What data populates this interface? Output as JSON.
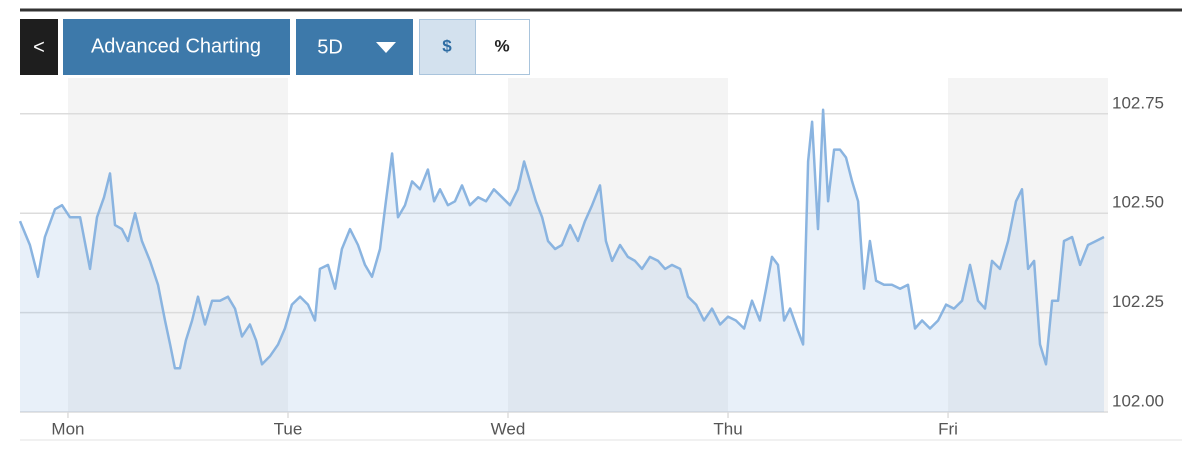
{
  "ui": {
    "back": "<",
    "advanced": "Advanced Charting",
    "range": "5D",
    "dollar": "$",
    "percent": "%"
  },
  "chart_data": {
    "type": "line",
    "x": [
      -0.218,
      -0.173,
      -0.136,
      -0.105,
      -0.059,
      -0.027,
      0.009,
      0.055,
      0.1,
      0.132,
      0.164,
      0.191,
      0.214,
      0.245,
      0.273,
      0.305,
      0.336,
      0.373,
      0.409,
      0.441,
      0.464,
      0.486,
      0.509,
      0.536,
      0.564,
      0.591,
      0.623,
      0.655,
      0.691,
      0.727,
      0.759,
      0.791,
      0.827,
      0.855,
      0.882,
      0.918,
      0.955,
      0.986,
      1.018,
      1.055,
      1.091,
      1.123,
      1.145,
      1.182,
      1.214,
      1.245,
      1.282,
      1.318,
      1.35,
      1.382,
      1.418,
      1.445,
      1.473,
      1.5,
      1.532,
      1.564,
      1.6,
      1.636,
      1.664,
      1.691,
      1.727,
      1.759,
      1.791,
      1.827,
      1.864,
      1.9,
      1.936,
      1.973,
      2.009,
      2.045,
      2.073,
      2.1,
      2.127,
      2.155,
      2.182,
      2.214,
      2.245,
      2.282,
      2.318,
      2.35,
      2.382,
      2.418,
      2.445,
      2.473,
      2.509,
      2.545,
      2.577,
      2.609,
      2.645,
      2.682,
      2.714,
      2.745,
      2.782,
      2.818,
      2.855,
      2.891,
      2.927,
      2.964,
      3.0,
      3.036,
      3.073,
      3.109,
      3.145,
      3.173,
      3.2,
      3.227,
      3.255,
      3.282,
      3.314,
      3.341,
      3.364,
      3.382,
      3.409,
      3.432,
      3.455,
      3.482,
      3.509,
      3.536,
      3.564,
      3.591,
      3.618,
      3.645,
      3.673,
      3.709,
      3.745,
      3.782,
      3.818,
      3.85,
      3.882,
      3.918,
      3.955,
      3.991,
      4.027,
      4.064,
      4.1,
      4.136,
      4.168,
      4.2,
      4.236,
      4.273,
      4.309,
      4.336,
      4.364,
      4.391,
      4.418,
      4.445,
      4.473,
      4.5,
      4.527,
      4.564,
      4.6,
      4.636,
      4.673,
      4.709
    ],
    "series": [
      {
        "color": "#8ab4e0",
        "values": [
          102.48,
          102.42,
          102.34,
          102.44,
          102.51,
          102.52,
          102.49,
          102.49,
          102.36,
          102.49,
          102.54,
          102.6,
          102.47,
          102.46,
          102.43,
          102.5,
          102.43,
          102.38,
          102.32,
          102.23,
          102.17,
          102.11,
          102.11,
          102.18,
          102.23,
          102.29,
          102.22,
          102.28,
          102.28,
          102.29,
          102.26,
          102.19,
          102.22,
          102.18,
          102.12,
          102.14,
          102.17,
          102.21,
          102.27,
          102.29,
          102.27,
          102.23,
          102.36,
          102.37,
          102.31,
          102.41,
          102.46,
          102.42,
          102.37,
          102.34,
          102.41,
          102.53,
          102.65,
          102.49,
          102.52,
          102.58,
          102.56,
          102.61,
          102.53,
          102.56,
          102.52,
          102.53,
          102.57,
          102.52,
          102.54,
          102.53,
          102.56,
          102.54,
          102.52,
          102.56,
          102.63,
          102.58,
          102.53,
          102.49,
          102.43,
          102.41,
          102.42,
          102.47,
          102.43,
          102.48,
          102.52,
          102.57,
          102.43,
          102.38,
          102.42,
          102.39,
          102.38,
          102.36,
          102.39,
          102.38,
          102.36,
          102.37,
          102.36,
          102.29,
          102.27,
          102.23,
          102.26,
          102.22,
          102.24,
          102.23,
          102.21,
          102.28,
          102.23,
          102.31,
          102.39,
          102.37,
          102.23,
          102.26,
          102.21,
          102.17,
          102.63,
          102.73,
          102.46,
          102.76,
          102.53,
          102.66,
          102.66,
          102.64,
          102.58,
          102.53,
          102.31,
          102.43,
          102.33,
          102.32,
          102.32,
          102.31,
          102.32,
          102.21,
          102.23,
          102.21,
          102.23,
          102.27,
          102.26,
          102.28,
          102.37,
          102.28,
          102.26,
          102.38,
          102.36,
          102.43,
          102.53,
          102.56,
          102.36,
          102.38,
          102.17,
          102.12,
          102.28,
          102.28,
          102.43,
          102.44,
          102.37,
          102.42,
          102.43,
          102.44
        ]
      }
    ],
    "xlim": [
      -0.218,
      4.727
    ],
    "xticks": [
      {
        "value": 0,
        "label": "Mon"
      },
      {
        "value": 1,
        "label": "Tue"
      },
      {
        "value": 2,
        "label": "Wed"
      },
      {
        "value": 3,
        "label": "Thu"
      },
      {
        "value": 4,
        "label": "Fri"
      }
    ],
    "ylim": [
      102,
      102.84
    ],
    "yticks": [
      {
        "value": 102,
        "label": "102.00"
      },
      102.25,
      {
        "value": 102.5,
        "label": "102.50"
      },
      102.75
    ],
    "grid": true
  }
}
